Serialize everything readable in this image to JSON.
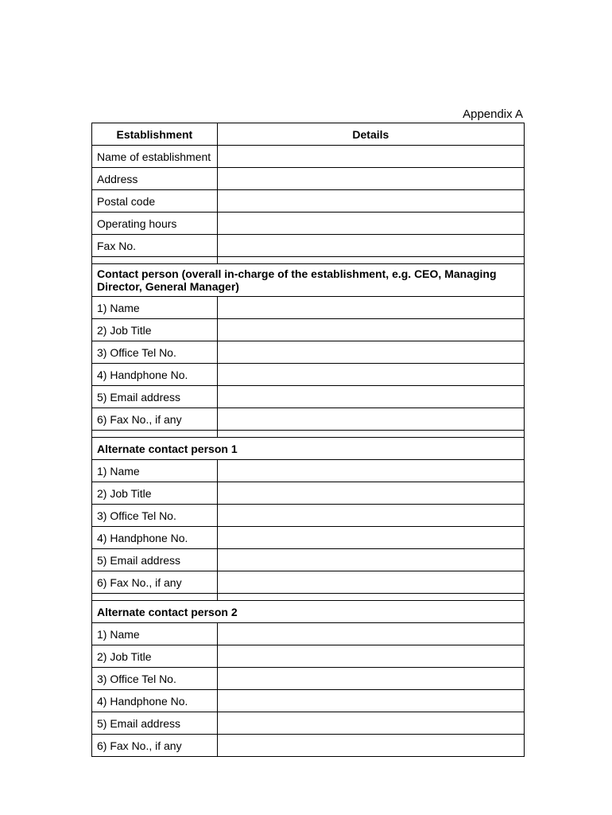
{
  "appendix_label": "Appendix A",
  "table": {
    "header": {
      "col1": "Establishment",
      "col2": "Details"
    },
    "establishment_rows": [
      "Name of establishment",
      "Address",
      "Postal code",
      "Operating hours",
      "Fax No."
    ],
    "section1": {
      "title": "Contact person (overall in-charge of the establishment, e.g. CEO, Managing Director, General Manager)",
      "rows": [
        "1) Name",
        "2) Job Title",
        "3) Office Tel No.",
        "4) Handphone No.",
        "5) Email address",
        "6) Fax No., if any"
      ]
    },
    "section2": {
      "title": "Alternate contact person 1",
      "rows": [
        "1) Name",
        "2) Job Title",
        "3) Office Tel No.",
        "4) Handphone No.",
        "5) Email address",
        "6) Fax No., if any"
      ]
    },
    "section3": {
      "title": "Alternate contact person 2",
      "rows": [
        "1) Name",
        "2) Job Title",
        "3) Office Tel No.",
        "4) Handphone No.",
        "5) Email address",
        "6) Fax No., if any"
      ]
    }
  }
}
